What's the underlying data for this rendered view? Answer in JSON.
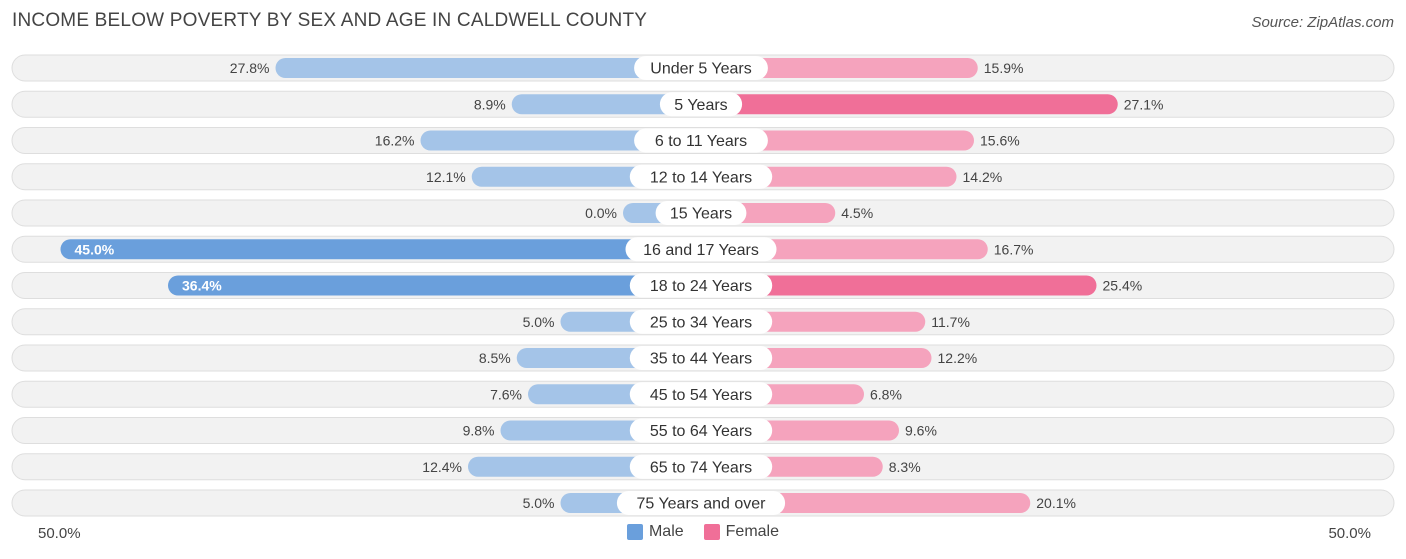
{
  "title": "INCOME BELOW POVERTY BY SEX AND AGE IN CALDWELL COUNTY",
  "source": "Source: ZipAtlas.com",
  "axis": {
    "left_label": "50.0%",
    "right_label": "50.0%"
  },
  "legend": {
    "male_label": "Male",
    "female_label": "Female"
  },
  "colors": {
    "male_light": "#a4c4e8",
    "male_dark": "#6a9fdc",
    "female_light": "#f5a3bd",
    "female_dark": "#f06f98",
    "row_bg": "#f2f2f2",
    "row_border": "#dedede"
  },
  "chart_data": {
    "type": "bar",
    "orientation": "horizontal-diverging",
    "title": "INCOME BELOW POVERTY BY SEX AND AGE IN CALDWELL COUNTY",
    "xlim": [
      -50,
      50
    ],
    "categories": [
      "Under 5 Years",
      "5 Years",
      "6 to 11 Years",
      "12 to 14 Years",
      "15 Years",
      "16 and 17 Years",
      "18 to 24 Years",
      "25 to 34 Years",
      "35 to 44 Years",
      "45 to 54 Years",
      "55 to 64 Years",
      "65 to 74 Years",
      "75 Years and over"
    ],
    "series": [
      {
        "name": "Male",
        "values": [
          27.8,
          8.9,
          16.2,
          12.1,
          0.0,
          45.0,
          36.4,
          5.0,
          8.5,
          7.6,
          9.8,
          12.4,
          5.0
        ],
        "labels": [
          "27.8%",
          "8.9%",
          "16.2%",
          "12.1%",
          "0.0%",
          "45.0%",
          "36.4%",
          "5.0%",
          "8.5%",
          "7.6%",
          "9.8%",
          "12.4%",
          "5.0%"
        ]
      },
      {
        "name": "Female",
        "values": [
          15.9,
          27.1,
          15.6,
          14.2,
          4.5,
          16.7,
          25.4,
          11.7,
          12.2,
          6.8,
          9.6,
          8.3,
          20.1
        ],
        "labels": [
          "15.9%",
          "27.1%",
          "15.6%",
          "14.2%",
          "4.5%",
          "16.7%",
          "25.4%",
          "11.7%",
          "12.2%",
          "6.8%",
          "9.6%",
          "8.3%",
          "20.1%"
        ]
      }
    ],
    "legend_position": "bottom-center"
  }
}
